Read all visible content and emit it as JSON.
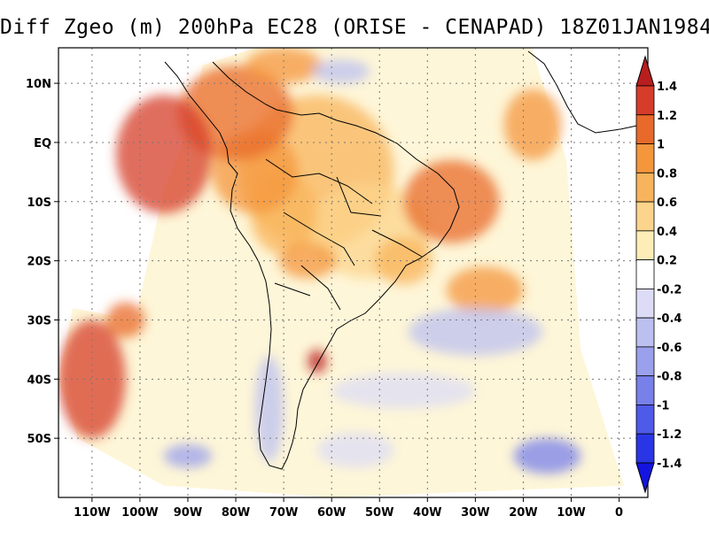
{
  "title": "Diff Zgeo (m) 200hPa EC28 (ORISE - CENAPAD) 18Z01JAN1984",
  "map": {
    "lon_range": [
      -117,
      6
    ],
    "lat_range": [
      -60,
      16
    ],
    "lon_ticks": [
      {
        "value": -110,
        "label": "110W"
      },
      {
        "value": -100,
        "label": "100W"
      },
      {
        "value": -90,
        "label": "90W"
      },
      {
        "value": -80,
        "label": "80W"
      },
      {
        "value": -70,
        "label": "70W"
      },
      {
        "value": -60,
        "label": "60W"
      },
      {
        "value": -50,
        "label": "50W"
      },
      {
        "value": -40,
        "label": "40W"
      },
      {
        "value": -30,
        "label": "30W"
      },
      {
        "value": -20,
        "label": "20W"
      },
      {
        "value": -10,
        "label": "10W"
      },
      {
        "value": 0,
        "label": "0"
      }
    ],
    "lat_ticks": [
      {
        "value": 10,
        "label": "10N"
      },
      {
        "value": 0,
        "label": "EQ"
      },
      {
        "value": -10,
        "label": "10S"
      },
      {
        "value": -20,
        "label": "20S"
      },
      {
        "value": -30,
        "label": "30S"
      },
      {
        "value": -40,
        "label": "40S"
      },
      {
        "value": -50,
        "label": "50S"
      }
    ],
    "grid": true,
    "domain_outline": [
      [
        -101,
        -30
      ],
      [
        -95,
        -8
      ],
      [
        -89,
        4
      ],
      [
        -87,
        13
      ],
      [
        -76,
        16
      ],
      [
        -49,
        17
      ],
      [
        -19,
        18
      ],
      [
        -11,
        -3
      ],
      [
        -8,
        -35
      ],
      [
        1,
        -58
      ],
      [
        -60,
        -60
      ],
      [
        -95,
        -58
      ],
      [
        -113,
        -50
      ],
      [
        -117,
        -40
      ],
      [
        -114,
        -28
      ]
    ]
  },
  "colorbar": {
    "position": "right",
    "levels": [
      "1.4",
      "1.2",
      "1",
      "0.8",
      "0.6",
      "0.4",
      "0.2",
      "-0.2",
      "-0.4",
      "-0.6",
      "-0.8",
      "-1",
      "-1.2",
      "-1.4"
    ],
    "colors": [
      "#b81e1e",
      "#d63c2a",
      "#e86a2a",
      "#f4963c",
      "#f8b45c",
      "#fcd48c",
      "#fdeeb8",
      "#ffffff",
      "#dcdcf6",
      "#bcc0f0",
      "#9aa0ec",
      "#7880ea",
      "#4e5ae8",
      "#2a36e6",
      "#1414e0"
    ]
  },
  "anomaly_blobs": [
    {
      "lon": -63,
      "lat": -5,
      "rx": 16,
      "ry": 13,
      "level": 4
    },
    {
      "lon": -52,
      "lat": -15,
      "rx": 13,
      "ry": 8,
      "level": 5
    },
    {
      "lon": -70,
      "lat": -12,
      "rx": 7,
      "ry": 7,
      "level": 4
    },
    {
      "lon": -45,
      "lat": -20,
      "rx": 6,
      "ry": 4,
      "level": 4
    },
    {
      "lon": -76,
      "lat": -5,
      "rx": 9,
      "ry": 7,
      "level": 3
    },
    {
      "lon": -80,
      "lat": 5,
      "rx": 12,
      "ry": 8,
      "level": 2
    },
    {
      "lon": -35,
      "lat": -10,
      "rx": 10,
      "ry": 7,
      "level": 2
    },
    {
      "lon": -28,
      "lat": -25,
      "rx": 8,
      "ry": 4,
      "level": 3
    },
    {
      "lon": -63,
      "lat": -37,
      "rx": 2,
      "ry": 2,
      "level": 0
    },
    {
      "lon": -70,
      "lat": 13,
      "rx": 8,
      "ry": 3,
      "level": 3
    },
    {
      "lon": -18,
      "lat": 3,
      "rx": 6,
      "ry": 6,
      "level": 3
    },
    {
      "lon": -95,
      "lat": -2,
      "rx": 10,
      "ry": 10,
      "level": 1
    },
    {
      "lon": -103,
      "lat": -30,
      "rx": 4,
      "ry": 3,
      "level": 2
    },
    {
      "lon": -30,
      "lat": -32,
      "rx": 14,
      "ry": 4,
      "level": 9
    },
    {
      "lon": -45,
      "lat": -42,
      "rx": 15,
      "ry": 3,
      "level": 8
    },
    {
      "lon": -15,
      "lat": -53,
      "rx": 7,
      "ry": 3,
      "level": 11
    },
    {
      "lon": -90,
      "lat": -53,
      "rx": 5,
      "ry": 2,
      "level": 10
    },
    {
      "lon": -55,
      "lat": -52,
      "rx": 8,
      "ry": 3,
      "level": 8
    },
    {
      "lon": -73,
      "lat": -45,
      "rx": 3,
      "ry": 9,
      "level": 9
    },
    {
      "lon": -58,
      "lat": 12,
      "rx": 6,
      "ry": 2,
      "level": 9
    },
    {
      "lon": -65,
      "lat": -20,
      "rx": 6,
      "ry": 3,
      "level": 3
    },
    {
      "lon": -110,
      "lat": -40,
      "rx": 7,
      "ry": 10,
      "level": 1
    }
  ]
}
